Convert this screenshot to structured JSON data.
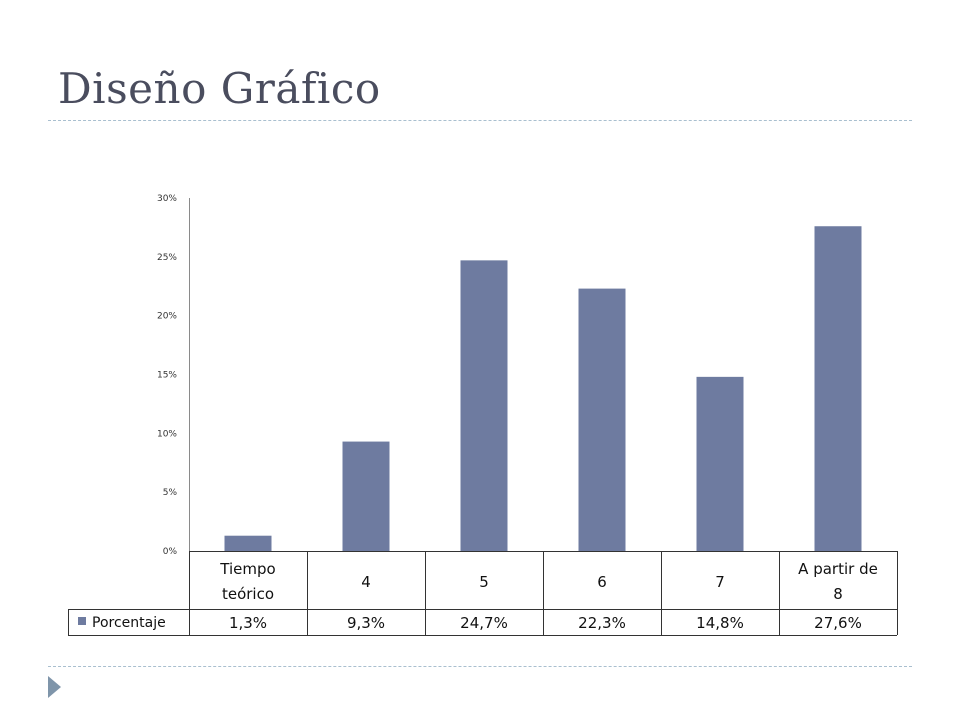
{
  "slide": {
    "title": "Diseño Gráfico"
  },
  "colors": {
    "bar": "#6e7ba0",
    "title": "#4a4d5e",
    "rule": "#a9bfcf",
    "footer_arrow": "#7f95aa"
  },
  "icons": {
    "footer": "triangle-right-icon"
  },
  "chart_data": {
    "type": "bar",
    "title": "",
    "xlabel": "",
    "ylabel": "",
    "ylim": [
      0,
      30
    ],
    "y_ticks": [
      "0%",
      "5%",
      "10%",
      "15%",
      "20%",
      "25%",
      "30%"
    ],
    "categories": [
      [
        "Tiempo",
        "teórico"
      ],
      [
        "4"
      ],
      [
        "5"
      ],
      [
        "6"
      ],
      [
        "7"
      ],
      [
        "A partir de",
        "8"
      ]
    ],
    "series": [
      {
        "name": "Porcentaje",
        "values": [
          1.3,
          9.3,
          24.7,
          22.3,
          14.8,
          27.6
        ],
        "value_labels": [
          "1,3%",
          "9,3%",
          "24,7%",
          "22,3%",
          "14,8%",
          "27,6%"
        ]
      }
    ],
    "grid": false,
    "legend": "data-table",
    "data_table": true
  }
}
